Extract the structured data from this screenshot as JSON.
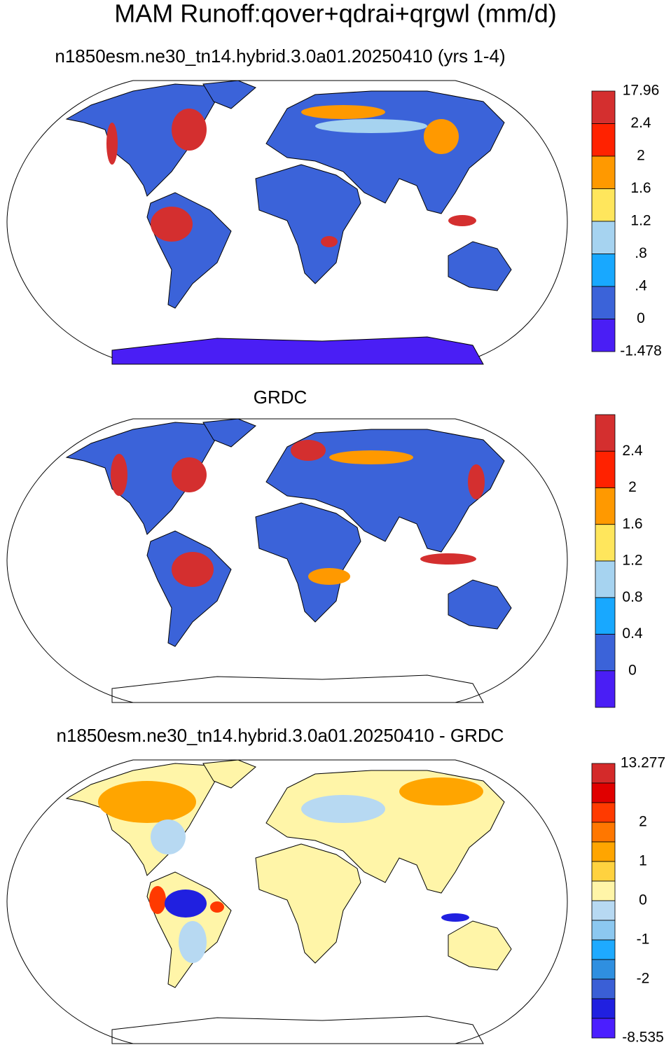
{
  "title": "MAM Runoff:qover+qdrai+qrgwl (mm/d)",
  "panels": [
    {
      "title": "n1850esm.ne30_tn14.hybrid.3.0a01.20250410 (yrs 1-4)",
      "colorbar": {
        "colors": [
          "#d42f2f",
          "#ff2200",
          "#ff9900",
          "#ffe65c",
          "#a6d3f0",
          "#18a8ff",
          "#3b63d9",
          "#4a1ef5"
        ],
        "labels": [
          "17.96",
          "2.4",
          "2",
          "1.6",
          "1.2",
          ".8",
          ".4",
          "0",
          "-1.478"
        ]
      }
    },
    {
      "title": "GRDC",
      "colorbar": {
        "colors": [
          "#d42f2f",
          "#ff2200",
          "#ff9900",
          "#ffe65c",
          "#a6d3f0",
          "#18a8ff",
          "#3b63d9",
          "#4a1ef5"
        ],
        "labels": [
          null,
          "2.4",
          "2",
          "1.6",
          "1.2",
          "0.8",
          "0.4",
          "0",
          null
        ]
      }
    },
    {
      "title": "n1850esm.ne30_tn14.hybrid.3.0a01.20250410 - GRDC",
      "colorbar": {
        "colors": [
          "#d42a2a",
          "#e00000",
          "#ff3a00",
          "#ff7700",
          "#ffa500",
          "#ffd23f",
          "#fff5a8",
          "#b7d9f2",
          "#8cc8f0",
          "#1eaaff",
          "#2f8fe0",
          "#3a5fd6",
          "#2020e0",
          "#4b1eff"
        ],
        "labels": [
          "13.277",
          null,
          null,
          "2",
          null,
          "1",
          null,
          "0",
          null,
          "-1",
          null,
          "-2",
          null,
          null,
          "-8.535"
        ]
      }
    }
  ]
}
